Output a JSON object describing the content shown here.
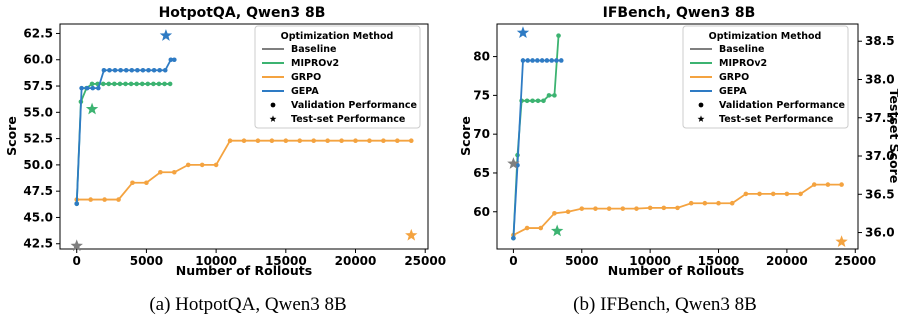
{
  "figure": {
    "captions": [
      "(a) HotpotQA, Qwen3 8B",
      "(b) IFBench, Qwen3 8B"
    ]
  },
  "legend": {
    "title": "Optimization Method",
    "entries": [
      {
        "label": "Baseline",
        "kind": "line",
        "color": "#7f7f7f"
      },
      {
        "label": "MIPROv2",
        "kind": "line",
        "color": "#3cb371"
      },
      {
        "label": "GRPO",
        "kind": "line",
        "color": "#f4a340"
      },
      {
        "label": "GEPA",
        "kind": "line",
        "color": "#2e7bc4"
      },
      {
        "label": "Validation Performance",
        "kind": "dot",
        "color": "#000000"
      },
      {
        "label": "Test-set Performance",
        "kind": "star",
        "color": "#000000"
      }
    ]
  },
  "chart_data": [
    {
      "type": "line",
      "title": "HotpotQA, Qwen3 8B",
      "xlabel": "Number of Rollouts",
      "ylabel": "Score",
      "xlim": [
        -1200,
        25200
      ],
      "ylim": [
        42.0,
        63.4
      ],
      "xticks": [
        0,
        5000,
        10000,
        15000,
        20000,
        25000
      ],
      "yticks": [
        42.5,
        45.0,
        47.5,
        50.0,
        52.5,
        55.0,
        57.5,
        60.0,
        62.5
      ],
      "ytick_labels": [
        "42.5",
        "45.0",
        "47.5",
        "50.0",
        "52.5",
        "55.0",
        "57.5",
        "60.0",
        "62.5"
      ],
      "legend_position": "top-right",
      "series": [
        {
          "name": "GRPO",
          "color": "#f4a340",
          "x": [
            0,
            1000,
            2000,
            3000,
            4000,
            5000,
            6000,
            7000,
            8000,
            9000,
            10000,
            11000,
            12000,
            13000,
            14000,
            15000,
            16000,
            17000,
            18000,
            19000,
            20000,
            21000,
            22000,
            23000,
            24000
          ],
          "y": [
            46.7,
            46.7,
            46.7,
            46.7,
            48.3,
            48.3,
            49.3,
            49.3,
            50.0,
            50.0,
            50.0,
            52.3,
            52.3,
            52.3,
            52.3,
            52.3,
            52.3,
            52.3,
            52.3,
            52.3,
            52.3,
            52.3,
            52.3,
            52.3,
            52.3
          ]
        },
        {
          "name": "MIPROv2",
          "color": "#3cb371",
          "x": [
            0,
            300,
            700,
            1100,
            1500,
            1900,
            2300,
            2700,
            3100,
            3500,
            3900,
            4300,
            4700,
            5100,
            5500,
            5900,
            6300,
            6700
          ],
          "y": [
            46.3,
            56.0,
            57.3,
            57.7,
            57.7,
            57.7,
            57.7,
            57.7,
            57.7,
            57.7,
            57.7,
            57.7,
            57.7,
            57.7,
            57.7,
            57.7,
            57.7,
            57.7
          ]
        },
        {
          "name": "GEPA",
          "color": "#2e7bc4",
          "x": [
            0,
            350,
            750,
            1150,
            1550,
            1950,
            2350,
            2750,
            3150,
            3550,
            3950,
            4350,
            4750,
            5150,
            5550,
            5950,
            6350,
            6750,
            7000
          ],
          "y": [
            46.3,
            57.3,
            57.3,
            57.3,
            57.3,
            59.0,
            59.0,
            59.0,
            59.0,
            59.0,
            59.0,
            59.0,
            59.0,
            59.0,
            59.0,
            59.0,
            59.0,
            60.0,
            60.0
          ]
        }
      ],
      "test_points": [
        {
          "name": "Baseline",
          "color": "#7f7f7f",
          "x": 0,
          "y": 42.3
        },
        {
          "name": "MIPROv2",
          "color": "#3cb371",
          "x": 1100,
          "y": 55.3
        },
        {
          "name": "GEPA",
          "color": "#2e7bc4",
          "x": 6400,
          "y": 62.3
        },
        {
          "name": "GRPO",
          "color": "#f4a340",
          "x": 24000,
          "y": 43.3
        }
      ]
    },
    {
      "type": "line",
      "title": "IFBench, Qwen3 8B",
      "xlabel": "Number of Rollouts",
      "ylabel": "Score",
      "y2label": "Testset Score",
      "xlim": [
        -1200,
        25200
      ],
      "ylim": [
        55.2,
        84.2
      ],
      "y2lim": [
        35.785,
        38.725
      ],
      "xticks": [
        0,
        5000,
        10000,
        15000,
        20000,
        25000
      ],
      "yticks": [
        60,
        65,
        70,
        75,
        80
      ],
      "y2ticks": [
        36.0,
        36.5,
        37.0,
        37.5,
        38.0,
        38.5
      ],
      "y2tick_labels": [
        "36.0",
        "36.5",
        "37.0",
        "37.5",
        "38.0",
        "38.5"
      ],
      "legend_position": "top-right",
      "series": [
        {
          "name": "GRPO",
          "color": "#f4a340",
          "x": [
            0,
            1000,
            2000,
            3000,
            4000,
            5000,
            6000,
            7000,
            8000,
            9000,
            10000,
            11000,
            12000,
            13000,
            14000,
            15000,
            16000,
            17000,
            18000,
            19000,
            20000,
            21000,
            22000,
            23000,
            24000
          ],
          "y": [
            57.0,
            57.9,
            57.9,
            59.8,
            60.0,
            60.4,
            60.4,
            60.4,
            60.4,
            60.4,
            60.5,
            60.5,
            60.5,
            61.1,
            61.1,
            61.1,
            61.1,
            62.3,
            62.3,
            62.3,
            62.3,
            62.3,
            63.5,
            63.5,
            63.5
          ]
        },
        {
          "name": "MIPROv2",
          "color": "#3cb371",
          "x": [
            0,
            300,
            600,
            1000,
            1400,
            1800,
            2200,
            2600,
            3000,
            3300
          ],
          "y": [
            56.6,
            67.3,
            74.3,
            74.3,
            74.3,
            74.3,
            74.3,
            75.0,
            75.0,
            82.7
          ]
        },
        {
          "name": "GEPA",
          "color": "#2e7bc4",
          "x": [
            0,
            300,
            700,
            1050,
            1400,
            1750,
            2100,
            2450,
            2800,
            3150,
            3500
          ],
          "y": [
            56.6,
            66.0,
            79.5,
            79.5,
            79.5,
            79.5,
            79.5,
            79.5,
            79.5,
            79.5,
            79.5
          ]
        }
      ],
      "test_points": [
        {
          "name": "Baseline",
          "color": "#7f7f7f",
          "x": 0,
          "y2": 36.9
        },
        {
          "name": "MIPROv2",
          "color": "#3cb371",
          "x": 3200,
          "y2": 36.02
        },
        {
          "name": "GEPA",
          "color": "#2e7bc4",
          "x": 700,
          "y2": 38.61
        },
        {
          "name": "GRPO",
          "color": "#f4a340",
          "x": 24000,
          "y2": 35.88
        }
      ]
    }
  ]
}
